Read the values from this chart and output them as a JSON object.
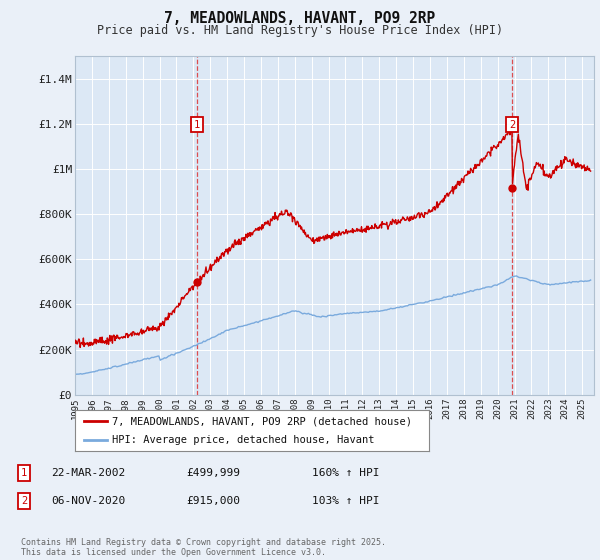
{
  "title": "7, MEADOWLANDS, HAVANT, PO9 2RP",
  "subtitle": "Price paid vs. HM Land Registry's House Price Index (HPI)",
  "background_color": "#eaf0f8",
  "plot_bg_color": "#dce8f5",
  "legend_label_red": "7, MEADOWLANDS, HAVANT, PO9 2RP (detached house)",
  "legend_label_blue": "HPI: Average price, detached house, Havant",
  "annotation1_date": "22-MAR-2002",
  "annotation1_price": "£499,999",
  "annotation1_hpi": "160% ↑ HPI",
  "annotation2_date": "06-NOV-2020",
  "annotation2_price": "£915,000",
  "annotation2_hpi": "103% ↑ HPI",
  "footer": "Contains HM Land Registry data © Crown copyright and database right 2025.\nThis data is licensed under the Open Government Licence v3.0.",
  "ylim": [
    0,
    1500000
  ],
  "yticks": [
    0,
    200000,
    400000,
    600000,
    800000,
    1000000,
    1200000,
    1400000
  ],
  "ytick_labels": [
    "£0",
    "£200K",
    "£400K",
    "£600K",
    "£800K",
    "£1M",
    "£1.2M",
    "£1.4M"
  ],
  "red_color": "#cc0000",
  "blue_color": "#7aaadd",
  "vline_color": "#dd3333",
  "annotation_box_color": "#cc0000",
  "marker1_year": 2002.22,
  "marker1_price": 499999,
  "marker2_year": 2020.85,
  "marker2_price": 915000,
  "xstart_year": 1995,
  "xend_year": 2025
}
